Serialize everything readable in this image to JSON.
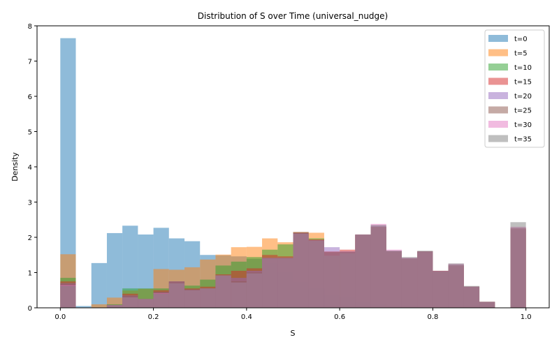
{
  "chart_data": {
    "type": "bar",
    "title": "Distribution of S over Time (universal_nudge)",
    "xlabel": "S",
    "ylabel": "Density",
    "xlim": [
      -0.05,
      1.05
    ],
    "ylim": [
      0,
      8
    ],
    "xticks": [
      "0.0",
      "0.2",
      "0.4",
      "0.6",
      "0.8",
      "1.0"
    ],
    "yticks": [
      "0",
      "1",
      "2",
      "3",
      "4",
      "5",
      "6",
      "7",
      "8"
    ],
    "legend_position": "top-right",
    "bin_edges": [
      0.0,
      0.0333,
      0.0667,
      0.1,
      0.1333,
      0.1667,
      0.2,
      0.2333,
      0.2667,
      0.3,
      0.3333,
      0.3667,
      0.4,
      0.4333,
      0.4667,
      0.5,
      0.5333,
      0.5667,
      0.6,
      0.6333,
      0.6667,
      0.7,
      0.7333,
      0.7667,
      0.8,
      0.8333,
      0.8667,
      0.9,
      0.9333,
      0.9667,
      1.0
    ],
    "series": [
      {
        "name": "t=0",
        "color": "#1f77b4",
        "values": [
          7.65,
          0.05,
          1.27,
          2.12,
          2.33,
          2.08,
          2.27,
          1.97,
          1.89,
          1.5,
          1.49,
          1.46,
          1.39,
          1.26,
          1.03,
          0.72,
          0.54,
          0.35,
          0.29,
          0.15,
          0.1,
          0.06,
          0.04,
          0.02,
          0.0,
          0.0,
          0.0,
          0.0,
          0.0,
          0.0
        ]
      },
      {
        "name": "t=5",
        "color": "#ff7f0e",
        "values": [
          1.52,
          0.0,
          0.1,
          0.29,
          0.49,
          0.54,
          1.1,
          1.08,
          1.15,
          1.37,
          1.51,
          1.72,
          1.73,
          1.97,
          1.86,
          2.1,
          2.13,
          1.59,
          1.59,
          2.05,
          2.29,
          1.61,
          1.39,
          1.6,
          1.05,
          1.19,
          0.6,
          0.17,
          0.0,
          2.27
        ]
      },
      {
        "name": "t=10",
        "color": "#2ca02c",
        "values": [
          0.85,
          0.0,
          0.01,
          0.1,
          0.55,
          0.55,
          0.55,
          0.75,
          0.63,
          0.8,
          1.2,
          1.31,
          1.44,
          1.65,
          1.8,
          2.15,
          1.97,
          1.58,
          1.59,
          2.07,
          2.3,
          1.6,
          1.4,
          1.6,
          1.05,
          1.2,
          0.6,
          0.17,
          0.0,
          2.22
        ]
      },
      {
        "name": "t=15",
        "color": "#d62728",
        "values": [
          0.75,
          0.0,
          0.0,
          0.08,
          0.4,
          0.25,
          0.5,
          0.75,
          0.55,
          0.6,
          0.95,
          1.05,
          1.12,
          1.5,
          1.46,
          2.15,
          1.94,
          1.6,
          1.65,
          2.08,
          2.3,
          1.6,
          1.4,
          1.6,
          1.05,
          1.2,
          0.6,
          0.17,
          0.0,
          2.25
        ]
      },
      {
        "name": "t=20",
        "color": "#9467bd",
        "values": [
          0.7,
          0.0,
          0.0,
          0.08,
          0.35,
          0.25,
          0.45,
          0.75,
          0.52,
          0.55,
          0.92,
          0.85,
          1.05,
          1.42,
          1.42,
          2.12,
          1.92,
          1.72,
          1.6,
          2.07,
          2.33,
          1.62,
          1.41,
          1.6,
          1.04,
          1.22,
          0.6,
          0.17,
          0.0,
          2.27
        ]
      },
      {
        "name": "t=25",
        "color": "#8c564b",
        "values": [
          0.68,
          0.0,
          0.0,
          0.08,
          0.33,
          0.25,
          0.45,
          0.72,
          0.52,
          0.55,
          0.92,
          0.75,
          1.0,
          1.4,
          1.4,
          2.12,
          1.9,
          1.48,
          1.55,
          2.08,
          2.3,
          1.6,
          1.4,
          1.6,
          1.05,
          1.22,
          0.6,
          0.17,
          0.0,
          2.25
        ]
      },
      {
        "name": "t=30",
        "color": "#e377c2",
        "values": [
          0.65,
          0.0,
          0.0,
          0.08,
          0.3,
          0.25,
          0.42,
          0.7,
          0.5,
          0.55,
          0.92,
          0.72,
          0.98,
          1.4,
          1.4,
          2.1,
          1.9,
          1.48,
          1.55,
          2.08,
          2.38,
          1.65,
          1.42,
          1.6,
          1.05,
          1.25,
          0.6,
          0.17,
          0.0,
          2.3
        ]
      },
      {
        "name": "t=35",
        "color": "#7f7f7f",
        "values": [
          0.62,
          0.0,
          0.0,
          0.08,
          0.3,
          0.25,
          0.4,
          0.7,
          0.5,
          0.55,
          0.92,
          0.72,
          0.98,
          1.4,
          1.4,
          2.1,
          1.9,
          1.48,
          1.55,
          2.08,
          2.35,
          1.62,
          1.44,
          1.62,
          1.04,
          1.26,
          0.62,
          0.17,
          0.0,
          2.43
        ]
      }
    ]
  }
}
